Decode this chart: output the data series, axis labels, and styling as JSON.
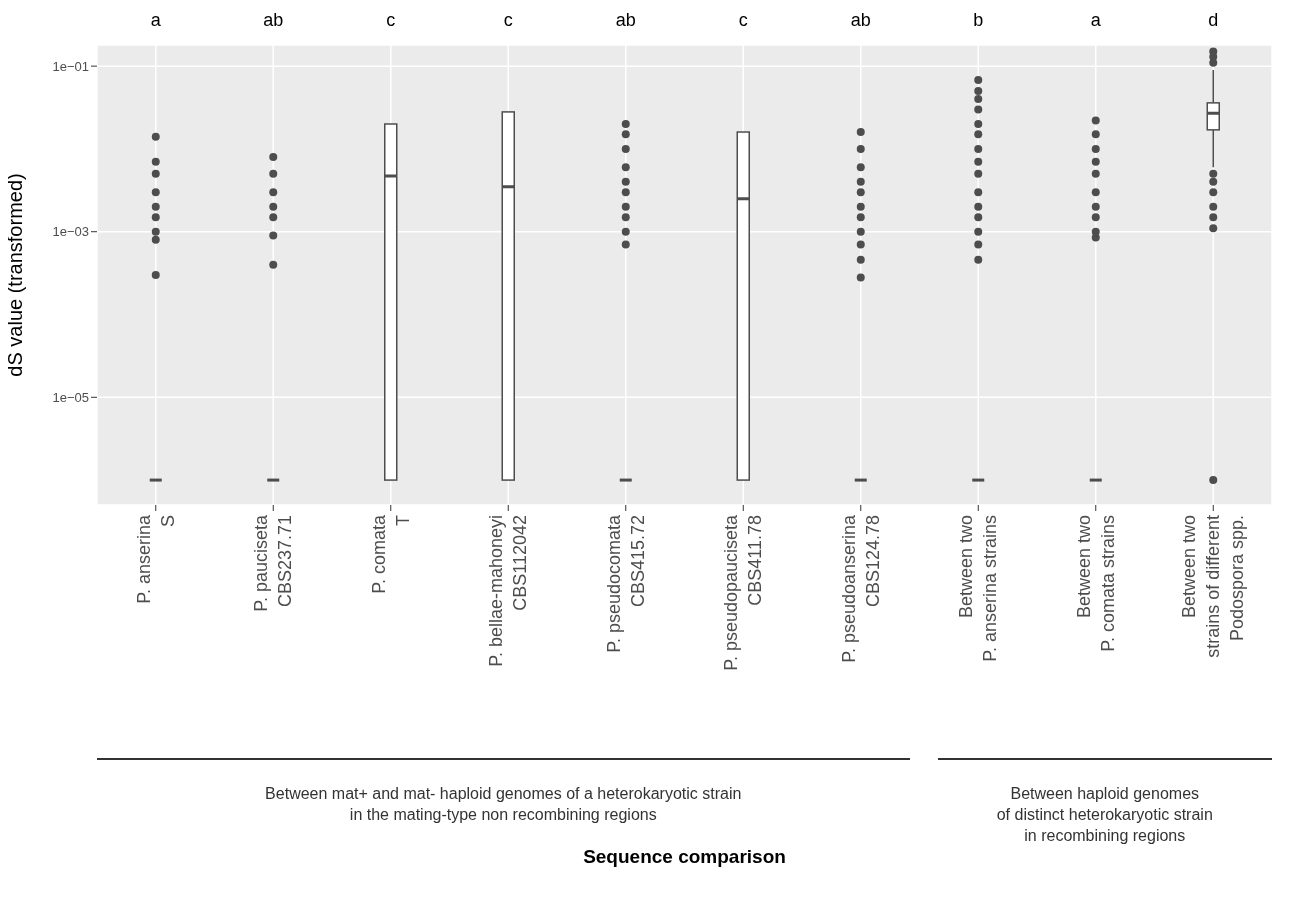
{
  "chart_data": {
    "type": "box",
    "ylabel": "dS value (transformed)",
    "log": true,
    "grid": true,
    "color": "#4d4d4d",
    "categories": [
      "P. anserina\nS",
      "P. pauciseta\nCBS237.71",
      "P. comata\nT",
      "P. bellae-mahoneyi\nCBS112042",
      "P. pseudocomata\nCBS415.72",
      "P. pseudopauciseta\nCBS411.78",
      "P. pseudoanserina\nCBS124.78",
      "Between two\nP. anserina strains",
      "Between two\nP. comata strains",
      "Between two\nstrains of different\nPodospora spp."
    ],
    "ylim": [
      5e-07,
      0.18
    ],
    "yticks": [
      {
        "value": 0.1,
        "label": "1e−01"
      },
      {
        "value": 0.001,
        "label": "1e−03"
      },
      {
        "value": 1e-05,
        "label": "1e−05"
      }
    ],
    "boxes": [
      {
        "low": 1e-06,
        "q1": 1e-06,
        "median": 1e-06,
        "q3": 1e-06,
        "high": 1e-06,
        "outliers": [
          0.014,
          0.007,
          0.005,
          0.003,
          0.002,
          0.0015,
          0.001,
          0.0008,
          0.0003
        ]
      },
      {
        "low": 1e-06,
        "q1": 1e-06,
        "median": 1e-06,
        "q3": 1e-06,
        "high": 1e-06,
        "outliers": [
          0.008,
          0.005,
          0.003,
          0.002,
          0.0015,
          0.0009,
          0.0004
        ]
      },
      {
        "low": 1e-06,
        "q1": 1e-06,
        "median": 0.0047,
        "q3": 0.02,
        "high": 0.02
      },
      {
        "low": 1e-06,
        "q1": 1e-06,
        "median": 0.0035,
        "q3": 0.028,
        "high": 0.028
      },
      {
        "low": 1e-06,
        "q1": 1e-06,
        "median": 1e-06,
        "q3": 1e-06,
        "high": 1e-06,
        "outliers": [
          0.02,
          0.015,
          0.01,
          0.006,
          0.004,
          0.003,
          0.002,
          0.0015,
          0.001,
          0.0007
        ]
      },
      {
        "low": 1e-06,
        "q1": 1e-06,
        "median": 0.0025,
        "q3": 0.016,
        "high": 0.016
      },
      {
        "low": 1e-06,
        "q1": 1e-06,
        "median": 1e-06,
        "q3": 1e-06,
        "high": 1e-06,
        "outliers": [
          0.016,
          0.01,
          0.006,
          0.004,
          0.003,
          0.002,
          0.0015,
          0.001,
          0.0007,
          0.00046,
          0.00028
        ]
      },
      {
        "low": 1e-06,
        "q1": 1e-06,
        "median": 1e-06,
        "q3": 1e-06,
        "high": 1e-06,
        "outliers": [
          0.068,
          0.05,
          0.04,
          0.03,
          0.02,
          0.015,
          0.01,
          0.007,
          0.005,
          0.003,
          0.002,
          0.0015,
          0.001,
          0.0007,
          0.00046
        ]
      },
      {
        "low": 1e-06,
        "q1": 1e-06,
        "median": 1e-06,
        "q3": 1e-06,
        "high": 1e-06,
        "outliers": [
          0.022,
          0.015,
          0.01,
          0.007,
          0.005,
          0.003,
          0.002,
          0.0015,
          0.001,
          0.00085
        ]
      },
      {
        "low": 0.006,
        "q1": 0.017,
        "median": 0.027,
        "q3": 0.036,
        "high": 0.09,
        "outliers": [
          0.15,
          0.13,
          0.11,
          0.005,
          0.004,
          0.003,
          0.002,
          0.0015,
          0.0011,
          1e-06
        ]
      }
    ],
    "annotations": [
      "a",
      "ab",
      "c",
      "c",
      "ab",
      "c",
      "ab",
      "b",
      "a",
      "d",
      "Between mat+ and mat- haploid genomes of a heterokaryotic strain\nin the mating-type non recombining regions",
      "Between haploid genomes\nof distinct heterokaryotic strain\nin recombining regions",
      "Sequence comparison"
    ]
  }
}
